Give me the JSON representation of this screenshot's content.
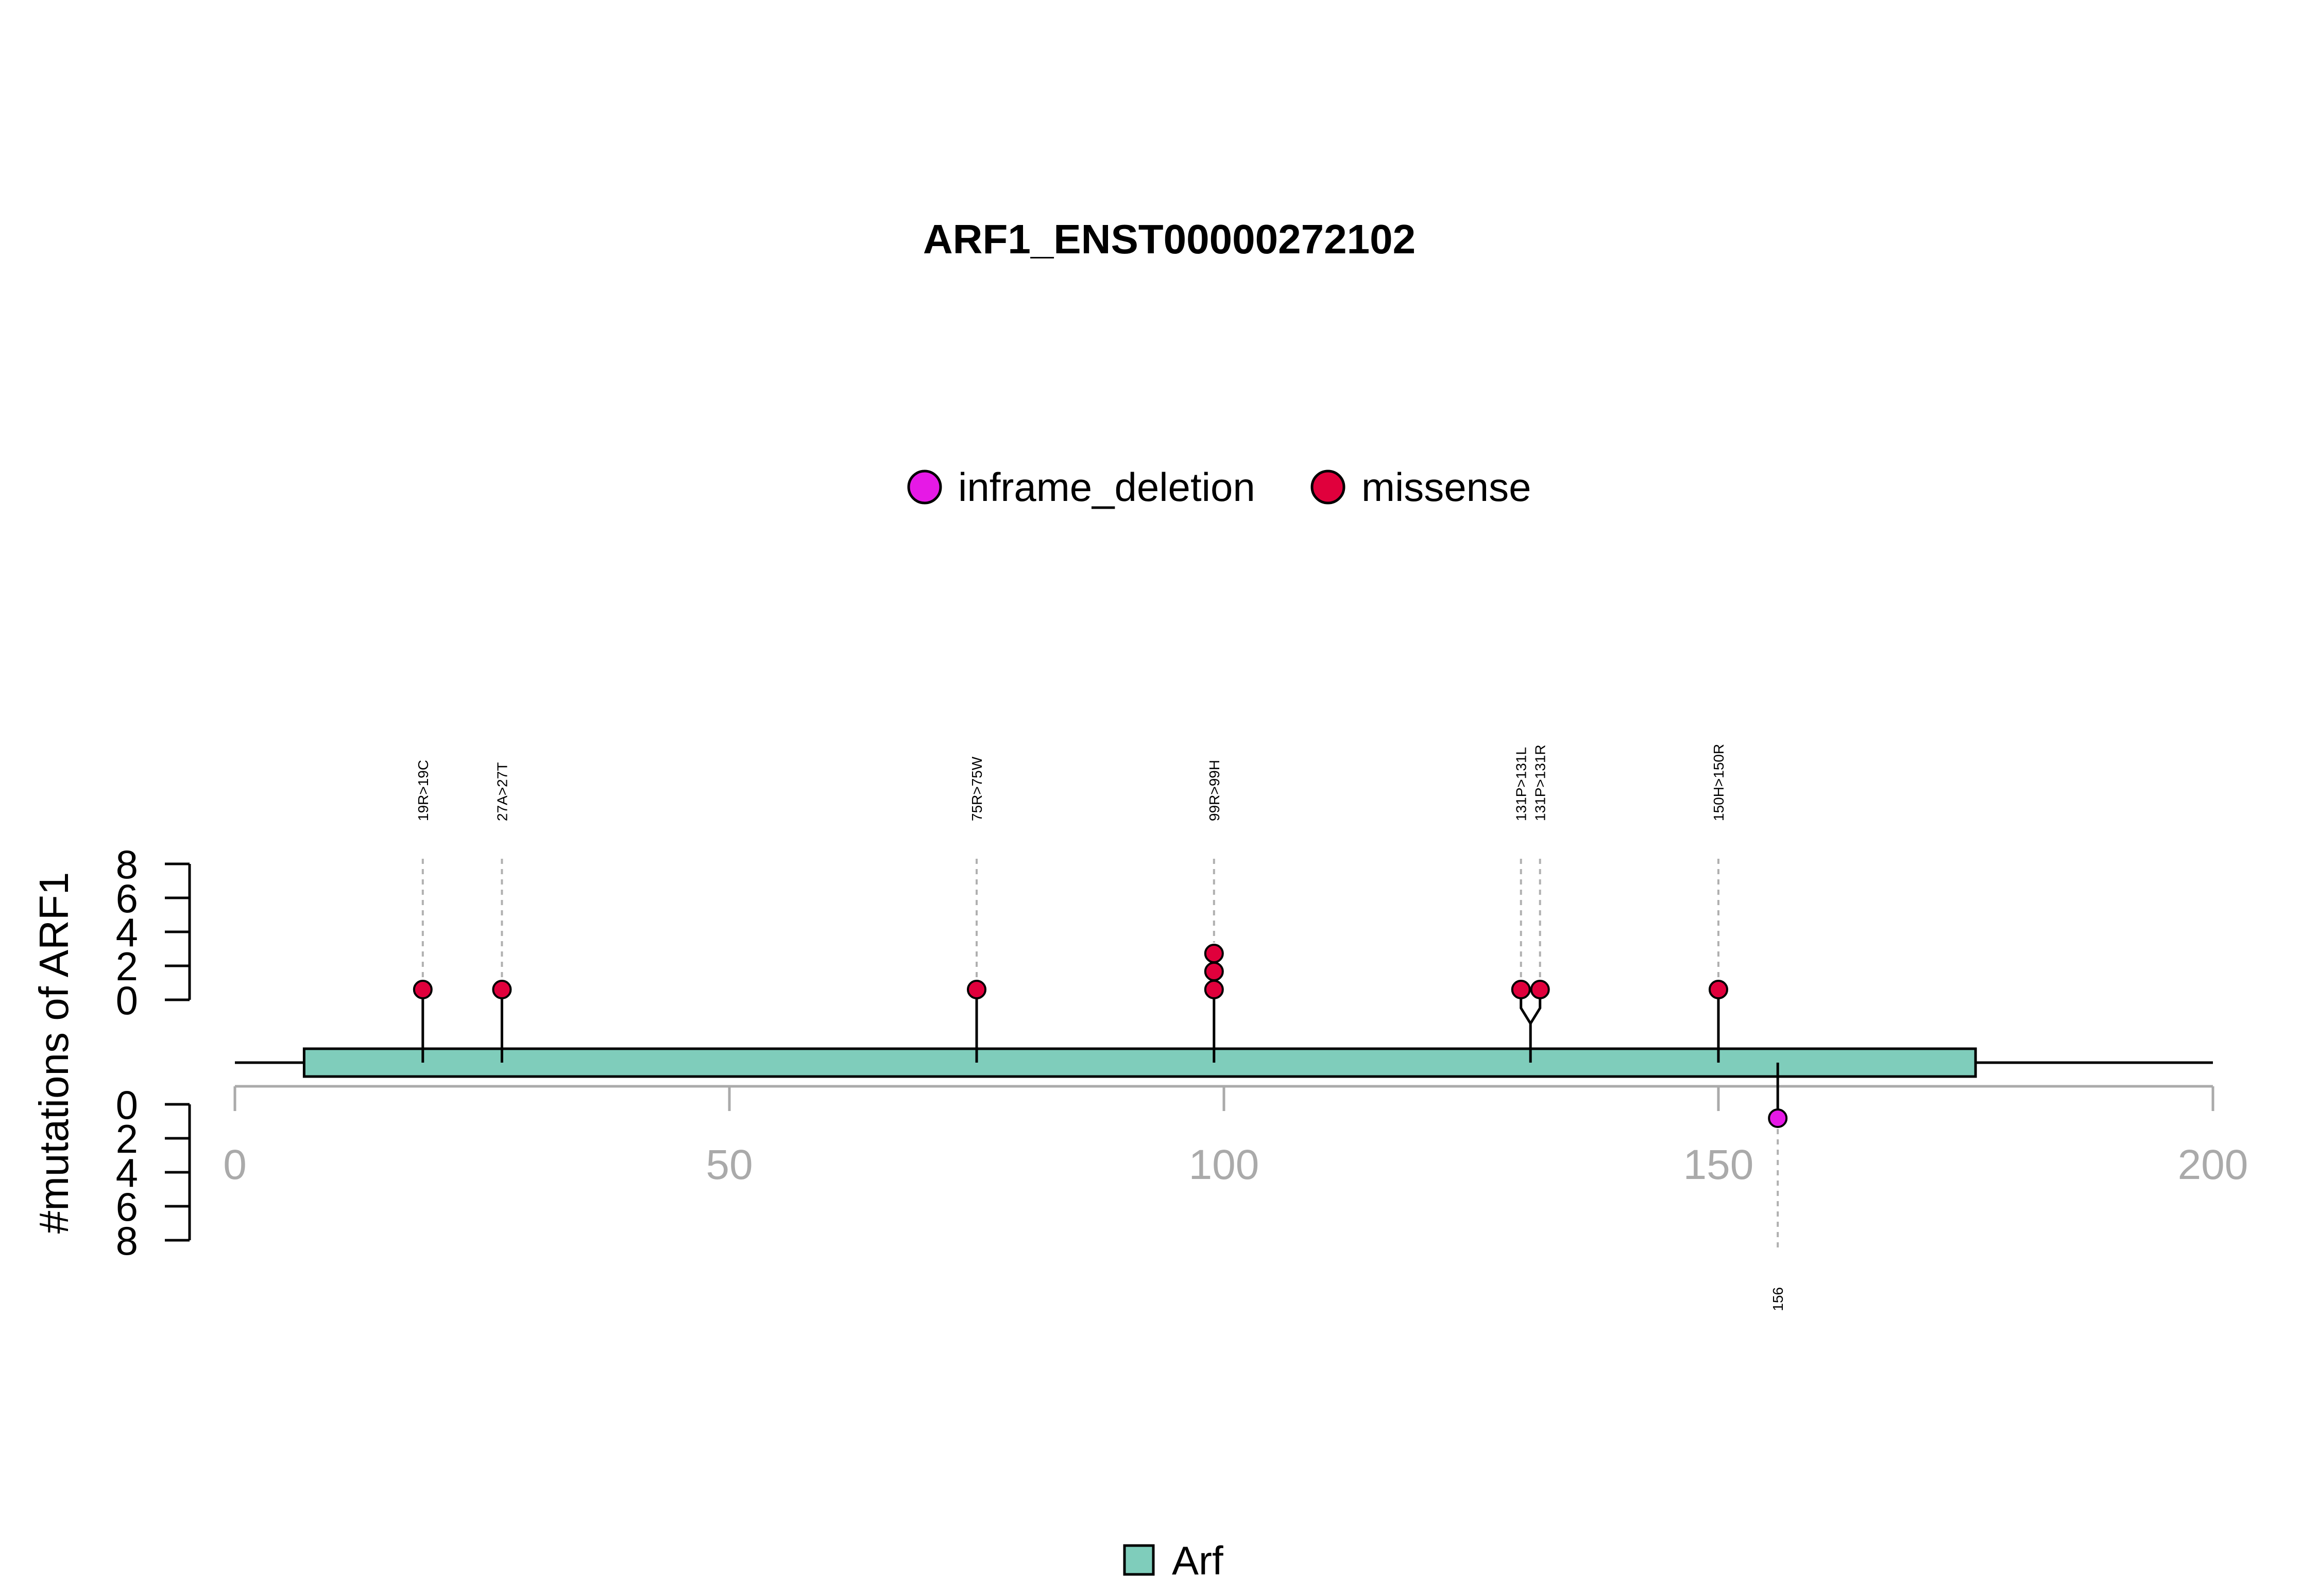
{
  "chart_data": {
    "type": "lollipop",
    "title": "ARF1_ENST00000272102",
    "ylabel": "#mutations of ARF1",
    "xlim": [
      0,
      200
    ],
    "x_ticks": [
      "0",
      "50",
      "100",
      "150",
      "200"
    ],
    "y_ticks": [
      "0",
      "2",
      "4",
      "6",
      "8"
    ],
    "ylim": [
      0,
      8
    ],
    "colors": {
      "inframe_deletion": "#e619e6",
      "missense": "#e0003c",
      "domain_fill": "#7fcdbb"
    },
    "legend": {
      "placement": "top-center",
      "entries": [
        "inframe_deletion",
        "missense"
      ]
    },
    "domains": [
      {
        "name": "Arf",
        "start": 7,
        "end": 176
      }
    ],
    "mutations_top": [
      {
        "label": "19R>19C",
        "position": 19,
        "count": 1,
        "type": "missense"
      },
      {
        "label": "27A>27T",
        "position": 27,
        "count": 1,
        "type": "missense"
      },
      {
        "label": "75R>75W",
        "position": 75,
        "count": 1,
        "type": "missense"
      },
      {
        "label": "99R>99H",
        "position": 99,
        "count": 3,
        "type": "missense"
      },
      {
        "label": "131P>131L",
        "position": 131,
        "count": 1,
        "type": "missense"
      },
      {
        "label": "131P>131R",
        "position": 131,
        "count": 1,
        "type": "missense"
      },
      {
        "label": "150H>150R",
        "position": 150,
        "count": 1,
        "type": "missense"
      }
    ],
    "mutations_bottom": [
      {
        "label": "156",
        "position": 156,
        "count": 1,
        "type": "inframe_deletion"
      }
    ]
  }
}
